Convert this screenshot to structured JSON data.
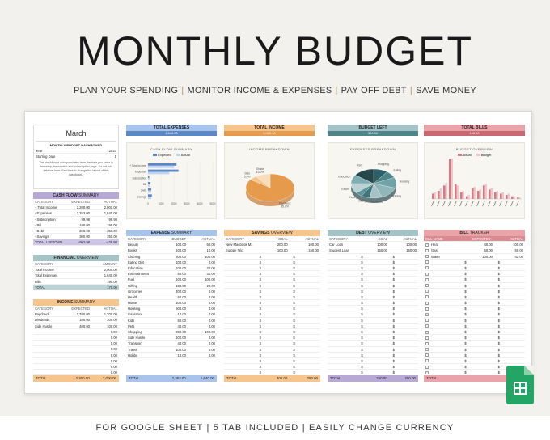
{
  "hero": {
    "title": "MONTHLY BUDGET",
    "tagline": [
      "PLAN YOUR SPENDING",
      "MONITOR INCOME & EXPENSES",
      "PAY OFF DEBT",
      "SAVE MONEY"
    ],
    "footer": "FOR GOOGLE SHEET | 5 TAB INCLUDED | EASILY CHANGE CURRENCY"
  },
  "colors": {
    "blue": "#a9c4ea",
    "orange": "#f6c48d",
    "teal": "#a5c3c6",
    "red": "#eaa3a8",
    "purple": "#b7a8d6",
    "tealdark": "#8fb7b9"
  },
  "month": {
    "name": "March",
    "dash_title": "MONTHLY BUDGET DASHBOARD",
    "year_label": "Year",
    "year": "2023",
    "start_label": "Starting Date",
    "start": "1",
    "note": "This dashboard auto-populates from the data you enter in the setup, transaction and subscription page. Do not edit data set here. Feel free to change the layout of this dashboard."
  },
  "cashflow": {
    "title": "CASH FLOW",
    "title2": "SUMMARY",
    "cols": [
      "CATEGORY",
      "EXPECTED",
      "ACTUAL"
    ],
    "rows": [
      [
        "+ Total Income",
        "2,200.00",
        "2,000.00"
      ],
      [
        "- Expenses",
        "2,353.00",
        "1,640.00"
      ],
      [
        "- Subscription",
        "99.98",
        "99.98"
      ],
      [
        "- Bill",
        "190.00",
        "190.00"
      ],
      [
        "- Debt",
        "250.00",
        "250.00"
      ],
      [
        "- Savings",
        "300.00",
        "250.00"
      ]
    ],
    "left_label": "TOTAL LEFTOVER",
    "left_exp": "-992.98",
    "left_act": "-429.98"
  },
  "financial": {
    "title": "FINANCIAL",
    "title2": "OVERVIEW",
    "cols": [
      "CATEGORY",
      "AMOUNT"
    ],
    "rows": [
      [
        "Total Income",
        "2,000.00"
      ],
      [
        "Total Expenses",
        "1,640.00"
      ],
      [
        "Bills",
        "190.00"
      ]
    ],
    "total_label": "TOTAL",
    "total": "170.00"
  },
  "income": {
    "title": "INCOME",
    "title2": "SUMMARY",
    "cols": [
      "CATEGORY",
      "EXPECTED",
      "ACTUAL"
    ],
    "rows": [
      [
        "Paycheck",
        "1,700.00",
        "1,700.00"
      ],
      [
        "Dividends",
        "100.00",
        "200.00"
      ],
      [
        "Side Hustle",
        "400.00",
        "100.00"
      ],
      [
        "",
        "",
        "0.00"
      ],
      [
        "",
        "",
        "0.00"
      ],
      [
        "",
        "",
        "0.00"
      ],
      [
        "",
        "",
        "0.00"
      ],
      [
        "",
        "",
        "0.00"
      ],
      [
        "",
        "",
        "0.00"
      ],
      [
        "",
        "",
        "0.00"
      ],
      [
        "",
        "",
        "0.00"
      ],
      [
        "",
        "",
        "0.00"
      ]
    ],
    "total_label": "TOTAL",
    "total_exp": "2,200.00",
    "total_act": "2,000.00"
  },
  "kpis": [
    {
      "label": "TOTAL EXPENSES",
      "value": "1,640.00"
    },
    {
      "label": "TOTAL INCOME",
      "value": "2,000.00"
    },
    {
      "label": "BUDGET LEFT",
      "value": "360.00"
    },
    {
      "label": "TOTAL BILLS",
      "value": "190.00"
    }
  ],
  "charts": {
    "cashflow_title": "CASH FLOW SUMMARY",
    "legend": [
      "Expected",
      "Actual"
    ],
    "income_title": "INCOME BREAKDOWN",
    "expenses_title": "EXPENSES BREAKDOWN",
    "bill_title": "BUDGET OVERVIEW",
    "bill_legend": [
      "Actual",
      "Budget"
    ]
  },
  "chart_data": [
    {
      "type": "bar",
      "title": "CASH FLOW SUMMARY",
      "categories": [
        "+ Total Income",
        "Expenses",
        "Subscription",
        "Bill",
        "Debt",
        "Savings"
      ],
      "series": [
        {
          "name": "Expected",
          "values": [
            2200,
            2353,
            99.98,
            190,
            250,
            300
          ]
        },
        {
          "name": "Actual",
          "values": [
            2000,
            1640,
            99.98,
            190,
            250,
            250
          ]
        }
      ],
      "xlim": [
        0,
        5000
      ],
      "xticks": [
        "0",
        "1000",
        "2000",
        "3000",
        "4000",
        "5000"
      ]
    },
    {
      "type": "pie",
      "title": "INCOME BREAKDOWN",
      "labels": [
        "Paycheck",
        "Side",
        "Divide"
      ],
      "values": [
        85,
        5,
        10
      ],
      "label_text": [
        "85.0%",
        "5.0%",
        "10.0%"
      ]
    },
    {
      "type": "pie",
      "title": "EXPENSES BREAKDOWN",
      "labels": [
        "Shopping",
        "Eating",
        "Housing",
        "Clothing",
        "Groceries",
        "Gifting",
        "Hobby",
        "Travel",
        "Education",
        "Rent"
      ],
      "values": [
        10,
        8,
        12,
        14,
        9,
        6,
        5,
        11,
        10,
        15
      ]
    },
    {
      "type": "bar",
      "title": "BUDGET OVERVIEW",
      "series": [
        {
          "name": "Actual",
          "values": [
            40,
            60,
            100,
            300,
            110,
            50,
            20,
            80,
            60,
            100,
            70,
            50,
            40,
            30,
            20,
            10
          ]
        },
        {
          "name": "Budget",
          "values": [
            50,
            80,
            120,
            300,
            100,
            60,
            30,
            90,
            70,
            110,
            80,
            60,
            50,
            40,
            20,
            10
          ]
        }
      ]
    }
  ],
  "expense": {
    "title": "EXPENSE",
    "title2": "SUMMARY",
    "cols": [
      "CATEGORY",
      "BUDGET",
      "ACTUAL"
    ],
    "rows": [
      [
        "Beauty",
        "100.00",
        "50.00"
      ],
      [
        "Books",
        "100.00",
        "10.00"
      ],
      [
        "Clothing",
        "200.00",
        "100.00"
      ],
      [
        "Eating Out",
        "100.00",
        "0.00"
      ],
      [
        "Education",
        "100.00",
        "20.00"
      ],
      [
        "Entertainment",
        "50.00",
        "30.00"
      ],
      [
        "Fuel",
        "100.00",
        "100.00"
      ],
      [
        "Gifting",
        "100.00",
        "20.00"
      ],
      [
        "Groceries",
        "400.00",
        "0.00"
      ],
      [
        "Health",
        "50.00",
        "0.00"
      ],
      [
        "Home",
        "100.00",
        "0.00"
      ],
      [
        "Housing",
        "500.00",
        "0.00"
      ],
      [
        "Insurance",
        "10.00",
        "0.00"
      ],
      [
        "Kids",
        "50.00",
        "0.00"
      ],
      [
        "Pets",
        "40.00",
        "0.00"
      ],
      [
        "Shopping",
        "300.00",
        "100.00"
      ],
      [
        "Side Hustle",
        "100.00",
        "0.00"
      ],
      [
        "Transport",
        "40.00",
        "0.00"
      ],
      [
        "Travel",
        "100.00",
        "0.00"
      ],
      [
        "Hobby",
        "10.00",
        "0.00"
      ]
    ],
    "total_label": "TOTAL",
    "total_b": "2,353.00",
    "total_a": "1,640.00"
  },
  "savings": {
    "title": "SAVINGS",
    "title2": "OVERVIEW",
    "cols": [
      "CATEGORY",
      "GOAL",
      "ACTUAL"
    ],
    "rows": [
      [
        "New Macbook M1",
        "200.00",
        "100.00"
      ],
      [
        "Europe Trip",
        "100.00",
        "150.00"
      ]
    ],
    "total_label": "TOTAL",
    "total_g": "300.00",
    "total_a": "250.00"
  },
  "debt": {
    "title": "DEBT",
    "title2": "OVERVIEW",
    "cols": [
      "CATEGORY",
      "GOAL",
      "ACTUAL"
    ],
    "rows": [
      [
        "Car Loan",
        "100.00",
        "100.00"
      ],
      [
        "Student Loan",
        "150.00",
        "150.00"
      ]
    ],
    "total_label": "TOTAL",
    "total_g": "250.00",
    "total_a": "250.00"
  },
  "bills": {
    "title": "BILL",
    "title2": "TRACKER",
    "cols": [
      "BILL NAME",
      "EXPECTED",
      "ACTUAL"
    ],
    "rows": [
      [
        "Heat",
        "40.00",
        "100.00"
      ],
      [
        "Gas",
        "50.00",
        "50.00"
      ],
      [
        "Water",
        "100.00",
        "42.00"
      ]
    ],
    "total_label": "TOTAL",
    "total_a": "190.00"
  }
}
